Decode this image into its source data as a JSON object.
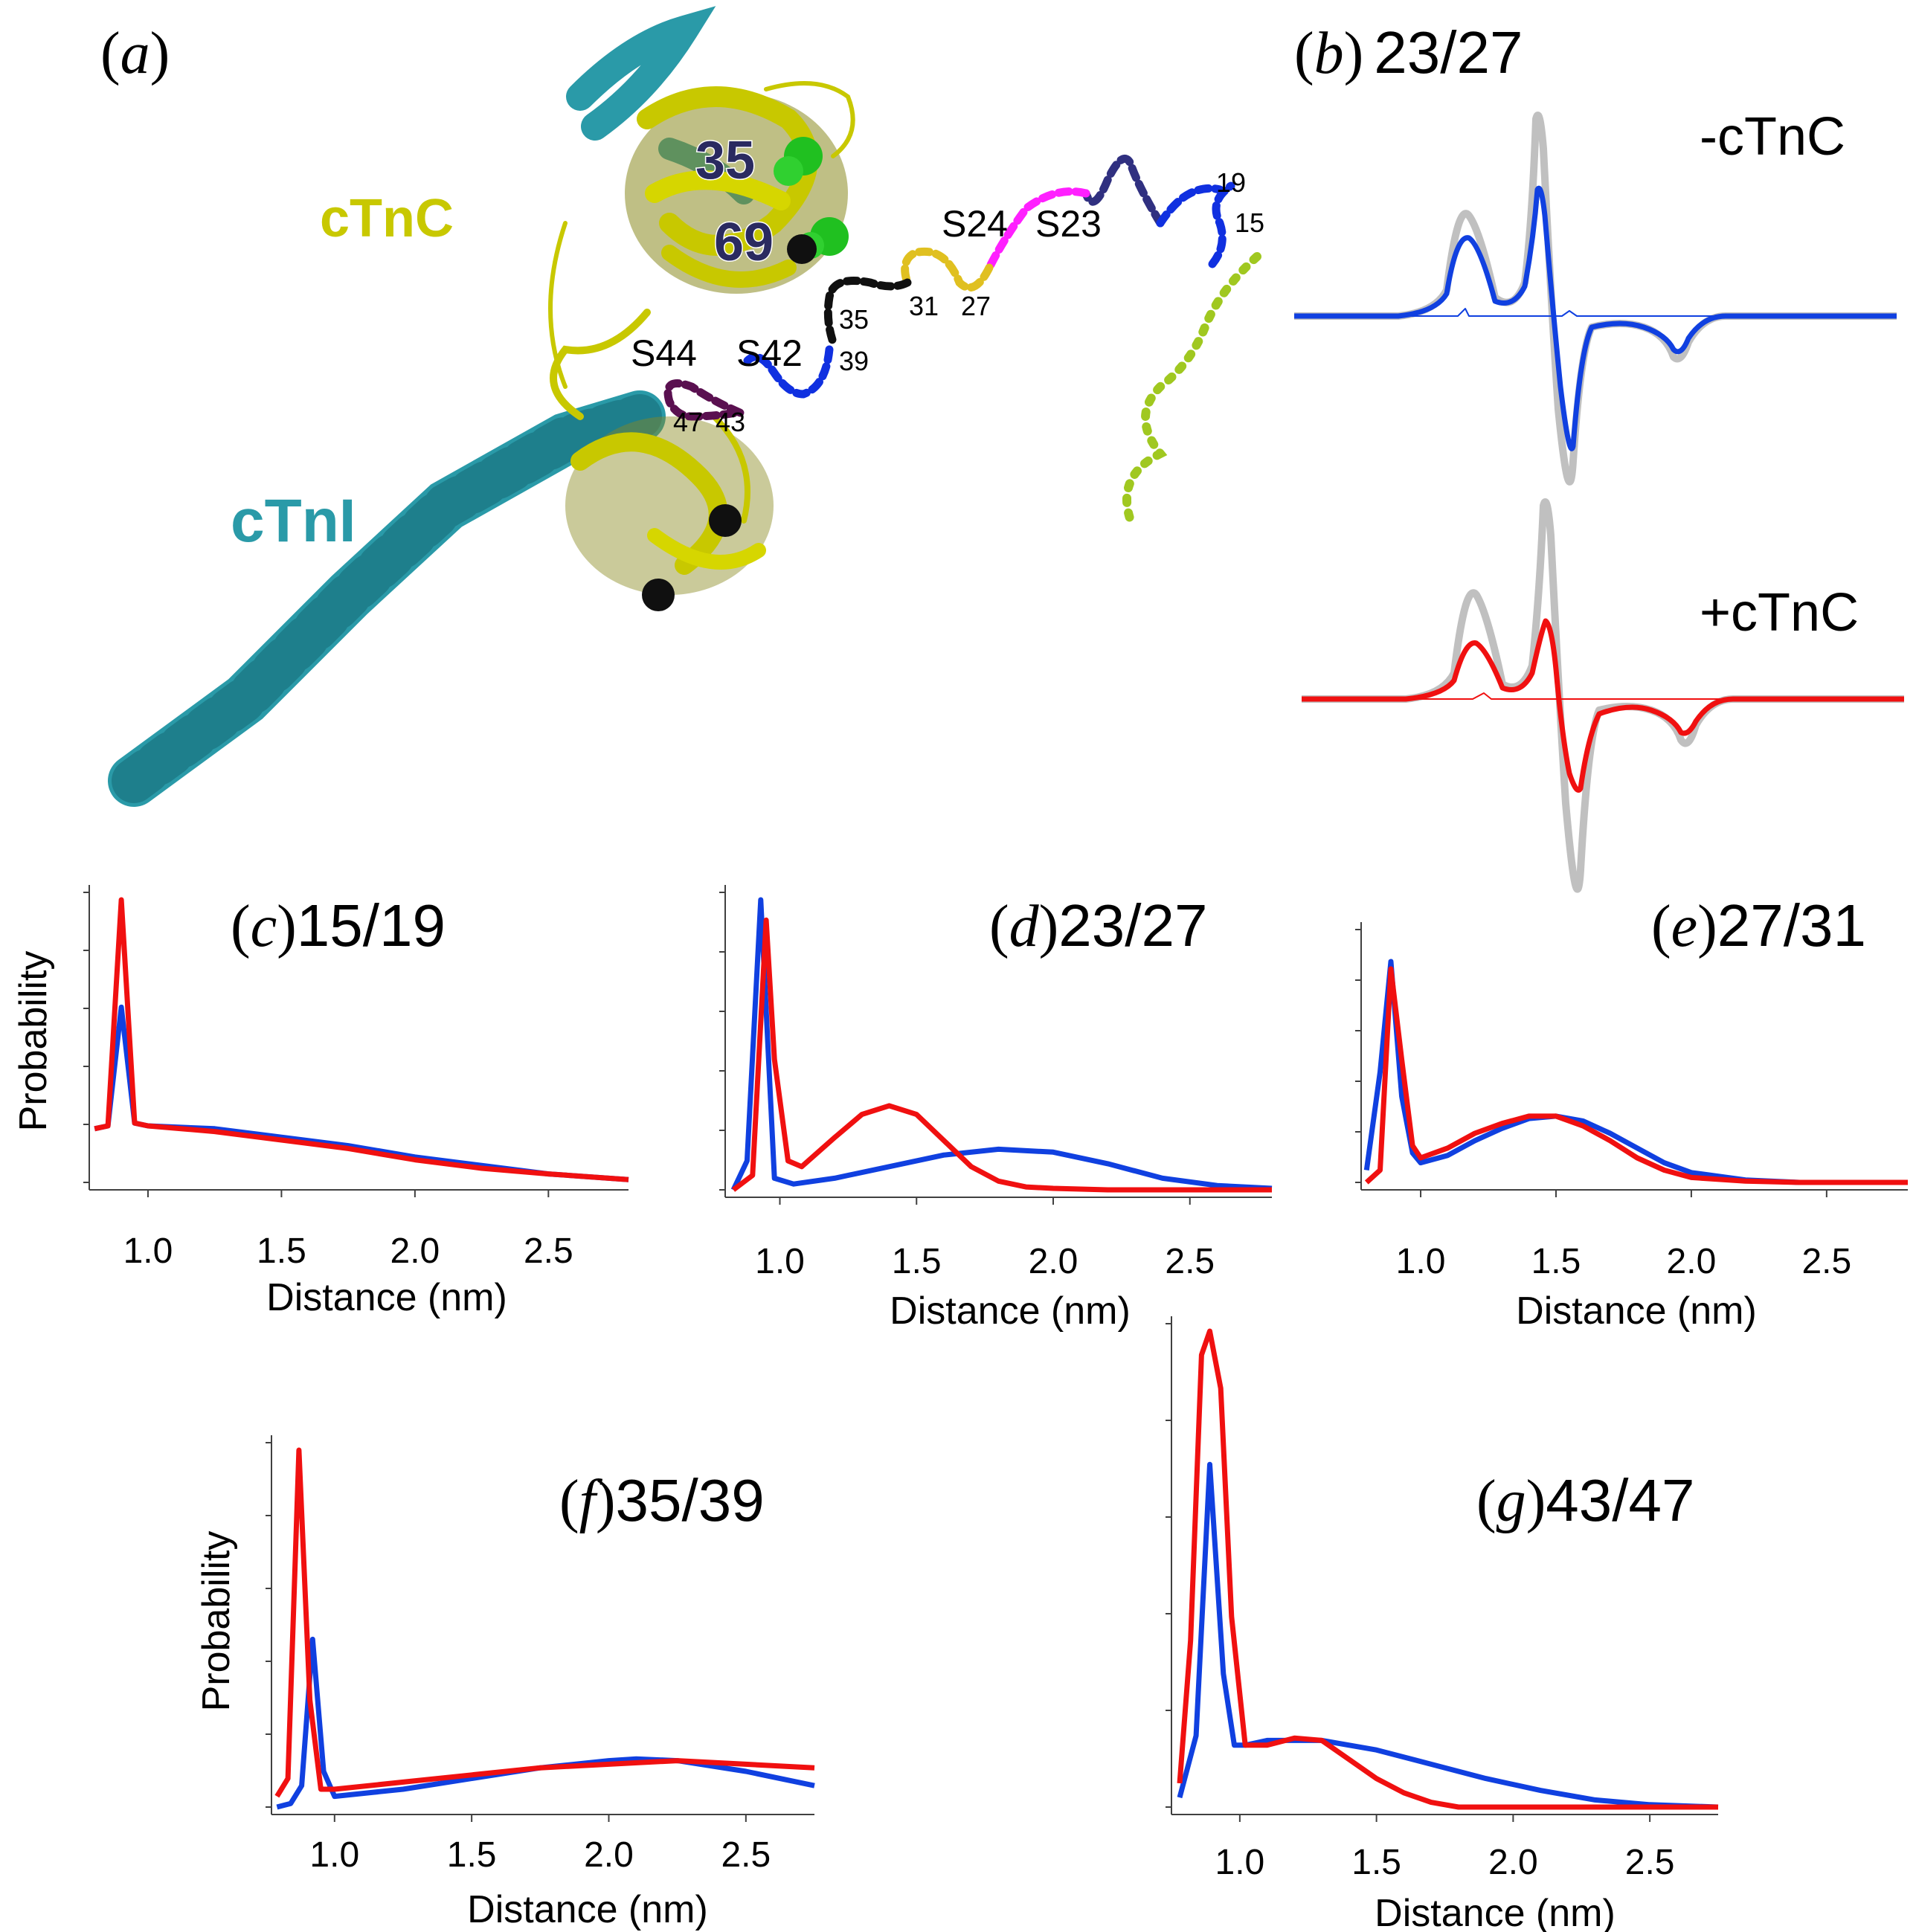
{
  "panel_a": {
    "label_paren_open": "(",
    "label_letter": "a",
    "label_paren_close": ")",
    "protein_labels": {
      "ctnc": "cTnC",
      "ctni": "cTnI"
    },
    "residue_labels": {
      "r35": "35",
      "r69": "69"
    },
    "segment_labels": {
      "s24": "S24",
      "s23": "S23",
      "s44": "S44",
      "s42": "S42",
      "n19": "19",
      "n15": "15",
      "n31": "31",
      "n27": "27",
      "n35": "35",
      "n39": "39",
      "n47": "47",
      "n43": "43"
    },
    "colors": {
      "ctnc": "#c8c800",
      "ctni": "#2a9aa8",
      "seg_15_19": "#1030e0",
      "seg_19_23": "#303080",
      "seg_23_27": "#ff20ff",
      "seg_27_31": "#e0c020",
      "seg_31_35": "#101010",
      "seg_39_43": "#1030e0",
      "seg_43_47": "#5a1050",
      "n_term": "#a0c820"
    }
  },
  "panel_b": {
    "label_paren_open": "(",
    "label_letter": "b",
    "label_paren_close": ")",
    "label_title": "23/27",
    "minus_label": "-cTnC",
    "plus_label": "+cTnC",
    "colors": {
      "minus": "#1040e0",
      "plus": "#f01010",
      "reference": "#c0c0c0"
    }
  },
  "series_colors": {
    "blue": "#1040e0",
    "red": "#f01010",
    "axis": "#404040"
  },
  "chart_data": [
    {
      "id": "c",
      "type": "line",
      "title_letter": "c",
      "title_text": "15/19",
      "xlabel": "Distance (nm)",
      "ylabel": "Probability",
      "xticks": [
        "1.0",
        "1.5",
        "2.0",
        "2.5"
      ],
      "xlim": [
        0.78,
        2.8
      ],
      "ylim": [
        0,
        1.0
      ],
      "series": [
        {
          "color": "blue",
          "x": [
            0.8,
            0.85,
            0.9,
            0.95,
            1.0,
            1.25,
            1.5,
            1.75,
            2.0,
            2.25,
            2.5,
            2.8
          ],
          "y": [
            0.19,
            0.2,
            0.62,
            0.21,
            0.2,
            0.19,
            0.16,
            0.13,
            0.09,
            0.06,
            0.03,
            0.01
          ]
        },
        {
          "color": "red",
          "x": [
            0.8,
            0.85,
            0.9,
            0.95,
            1.0,
            1.25,
            1.5,
            1.75,
            2.0,
            2.25,
            2.5,
            2.8
          ],
          "y": [
            0.19,
            0.2,
            1.0,
            0.21,
            0.2,
            0.18,
            0.15,
            0.12,
            0.08,
            0.05,
            0.03,
            0.01
          ]
        }
      ]
    },
    {
      "id": "d",
      "type": "line",
      "title_letter": "d",
      "title_text": "23/27",
      "xlabel": "Distance (nm)",
      "ylabel": "",
      "xticks": [
        "1.0",
        "1.5",
        "2.0",
        "2.5"
      ],
      "xlim": [
        0.8,
        2.8
      ],
      "ylim": [
        0,
        1.0
      ],
      "series": [
        {
          "color": "blue",
          "x": [
            0.83,
            0.88,
            0.93,
            0.98,
            1.05,
            1.2,
            1.4,
            1.6,
            1.8,
            2.0,
            2.2,
            2.4,
            2.6,
            2.8
          ],
          "y": [
            0.0,
            0.1,
            1.0,
            0.04,
            0.02,
            0.04,
            0.08,
            0.12,
            0.14,
            0.13,
            0.09,
            0.04,
            0.015,
            0.005
          ]
        },
        {
          "color": "red",
          "x": [
            0.83,
            0.9,
            0.95,
            0.98,
            1.03,
            1.08,
            1.2,
            1.3,
            1.4,
            1.5,
            1.6,
            1.7,
            1.8,
            1.9,
            2.0,
            2.2,
            2.4,
            2.8
          ],
          "y": [
            0.0,
            0.05,
            0.93,
            0.45,
            0.1,
            0.08,
            0.18,
            0.26,
            0.29,
            0.26,
            0.17,
            0.08,
            0.03,
            0.01,
            0.005,
            0.0,
            0.0,
            0.0
          ]
        }
      ]
    },
    {
      "id": "e",
      "type": "line",
      "title_letter": "e",
      "title_text": "27/31",
      "xlabel": "Distance (nm)",
      "ylabel": "",
      "xticks": [
        "1.0",
        "1.5",
        "2.0",
        "2.5"
      ],
      "xlim": [
        0.78,
        2.8
      ],
      "ylim": [
        0,
        1.0
      ],
      "series": [
        {
          "color": "blue",
          "x": [
            0.8,
            0.85,
            0.89,
            0.93,
            0.97,
            1.0,
            1.1,
            1.2,
            1.3,
            1.4,
            1.5,
            1.6,
            1.7,
            1.8,
            1.9,
            2.0,
            2.2,
            2.4,
            2.8
          ],
          "y": [
            0.05,
            0.45,
            0.9,
            0.35,
            0.12,
            0.08,
            0.11,
            0.17,
            0.22,
            0.26,
            0.27,
            0.25,
            0.2,
            0.14,
            0.08,
            0.04,
            0.01,
            0.0,
            0.0
          ]
        },
        {
          "color": "red",
          "x": [
            0.8,
            0.85,
            0.89,
            0.93,
            0.97,
            1.0,
            1.1,
            1.2,
            1.3,
            1.4,
            1.5,
            1.6,
            1.7,
            1.8,
            1.9,
            2.0,
            2.2,
            2.4,
            2.8
          ],
          "y": [
            0.0,
            0.05,
            0.87,
            0.5,
            0.15,
            0.1,
            0.14,
            0.2,
            0.24,
            0.27,
            0.27,
            0.23,
            0.17,
            0.1,
            0.05,
            0.02,
            0.005,
            0.0,
            0.0
          ]
        }
      ]
    },
    {
      "id": "f",
      "type": "line",
      "title_letter": "f",
      "title_text": "35/39",
      "xlabel": "Distance (nm)",
      "ylabel": "Probability",
      "xticks": [
        "1.0",
        "1.5",
        "2.0",
        "2.5"
      ],
      "xlim": [
        0.77,
        2.75
      ],
      "ylim": [
        0,
        1.0
      ],
      "series": [
        {
          "color": "blue",
          "x": [
            0.79,
            0.84,
            0.88,
            0.92,
            0.96,
            1.0,
            1.25,
            1.5,
            1.75,
            2.0,
            2.1,
            2.25,
            2.5,
            2.75
          ],
          "y": [
            0.0,
            0.01,
            0.06,
            0.47,
            0.1,
            0.03,
            0.05,
            0.08,
            0.11,
            0.13,
            0.135,
            0.13,
            0.1,
            0.06
          ]
        },
        {
          "color": "red",
          "x": [
            0.79,
            0.83,
            0.87,
            0.91,
            0.95,
            1.0,
            1.25,
            1.5,
            1.75,
            2.0,
            2.25,
            2.5,
            2.75
          ],
          "y": [
            0.03,
            0.08,
            1.0,
            0.3,
            0.05,
            0.05,
            0.07,
            0.09,
            0.11,
            0.12,
            0.13,
            0.12,
            0.11
          ]
        }
      ]
    },
    {
      "id": "g",
      "type": "line",
      "title_letter": "g",
      "title_text": "43/47",
      "xlabel": "Distance (nm)",
      "ylabel": "",
      "xticks": [
        "1.0",
        "1.5",
        "2.0",
        "2.5"
      ],
      "xlim": [
        0.75,
        2.75
      ],
      "ylim": [
        0,
        1.0
      ],
      "series": [
        {
          "color": "blue",
          "x": [
            0.78,
            0.84,
            0.89,
            0.94,
            0.98,
            1.02,
            1.1,
            1.3,
            1.5,
            1.7,
            1.9,
            2.1,
            2.3,
            2.5,
            2.75
          ],
          "y": [
            0.02,
            0.15,
            0.72,
            0.28,
            0.13,
            0.13,
            0.14,
            0.14,
            0.12,
            0.09,
            0.06,
            0.035,
            0.015,
            0.005,
            0.0
          ]
        },
        {
          "color": "red",
          "x": [
            0.78,
            0.82,
            0.86,
            0.89,
            0.93,
            0.97,
            1.02,
            1.1,
            1.2,
            1.3,
            1.4,
            1.5,
            1.6,
            1.7,
            1.8,
            2.0,
            2.75
          ],
          "y": [
            0.05,
            0.35,
            0.95,
            1.0,
            0.88,
            0.4,
            0.13,
            0.13,
            0.145,
            0.14,
            0.1,
            0.06,
            0.03,
            0.01,
            0.0,
            0.0,
            0.0
          ]
        }
      ]
    }
  ]
}
